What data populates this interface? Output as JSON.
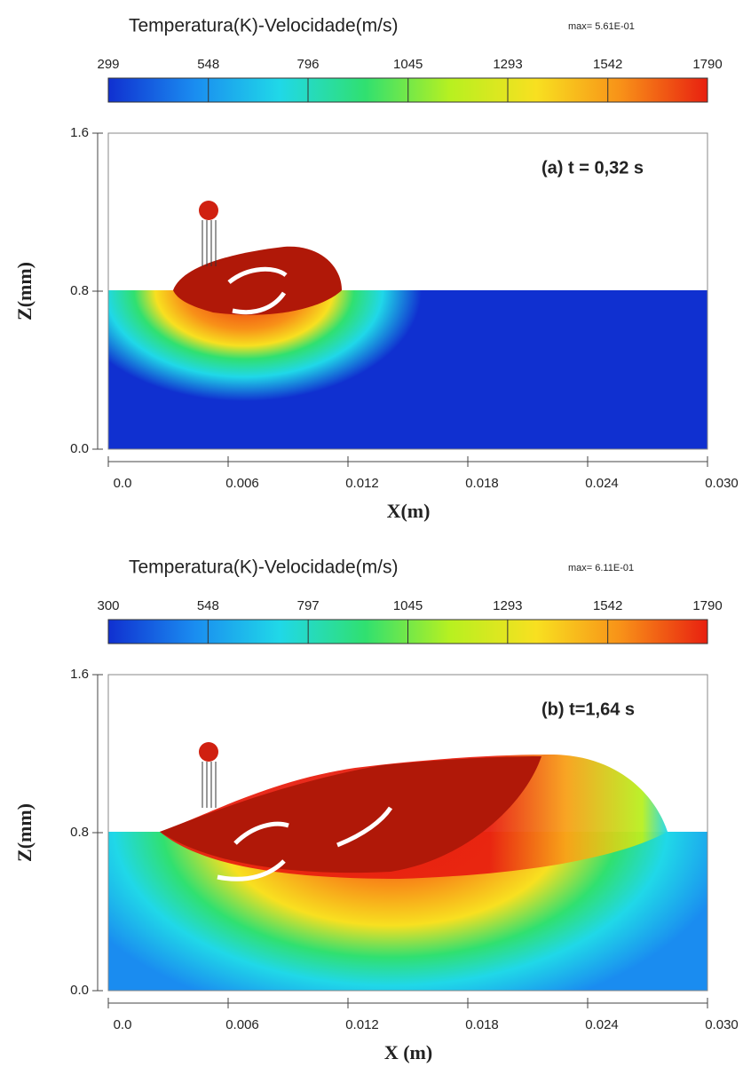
{
  "chart_data": [
    {
      "type": "contour",
      "title": "Temperatura(K)-Velocidade(m/s)",
      "max_label": "max= 5.61E-01",
      "annotation": "(a) t = 0,32 s",
      "xlabel": "X(m)",
      "ylabel": "Z(mm)",
      "colorbar": {
        "lim": [
          299,
          1790
        ],
        "ticks": [
          299,
          548,
          796,
          1045,
          1293,
          1542,
          1790
        ]
      },
      "colormap": [
        "#1030d0",
        "#1a8cf0",
        "#20d8e8",
        "#30e070",
        "#b8f020",
        "#f8e020",
        "#f89018",
        "#e82010"
      ],
      "xlim": [
        0,
        0.03
      ],
      "xticks": [
        {
          "value": 0,
          "label": "0.0"
        },
        0.006,
        0.012,
        0.018,
        0.024,
        {
          "value": 0.03,
          "label": "0.030"
        }
      ],
      "ylim": [
        0,
        1.6
      ],
      "yticks": [
        {
          "value": 0,
          "label": "0.0"
        },
        0.8,
        1.6
      ]
    },
    {
      "type": "contour",
      "title": "Temperatura(K)-Velocidade(m/s)",
      "max_label": "max= 6.11E-01",
      "annotation": "(b) t=1,64 s",
      "xlabel": "X (m)",
      "ylabel": "Z(mm)",
      "colorbar": {
        "lim": [
          300,
          1790
        ],
        "ticks": [
          300,
          548,
          797,
          1045,
          1293,
          1542,
          1790
        ]
      },
      "colormap": [
        "#1030d0",
        "#1a8cf0",
        "#20d8e8",
        "#30e070",
        "#b8f020",
        "#f8e020",
        "#f89018",
        "#e82010"
      ],
      "xlim": [
        0,
        0.03
      ],
      "xticks": [
        {
          "value": 0,
          "label": "0.0"
        },
        0.006,
        0.012,
        0.018,
        0.024,
        {
          "value": 0.03,
          "label": "0.030"
        }
      ],
      "ylim": [
        0,
        1.6
      ],
      "yticks": [
        {
          "value": 0,
          "label": "0.0"
        },
        0.8,
        1.6
      ]
    }
  ]
}
